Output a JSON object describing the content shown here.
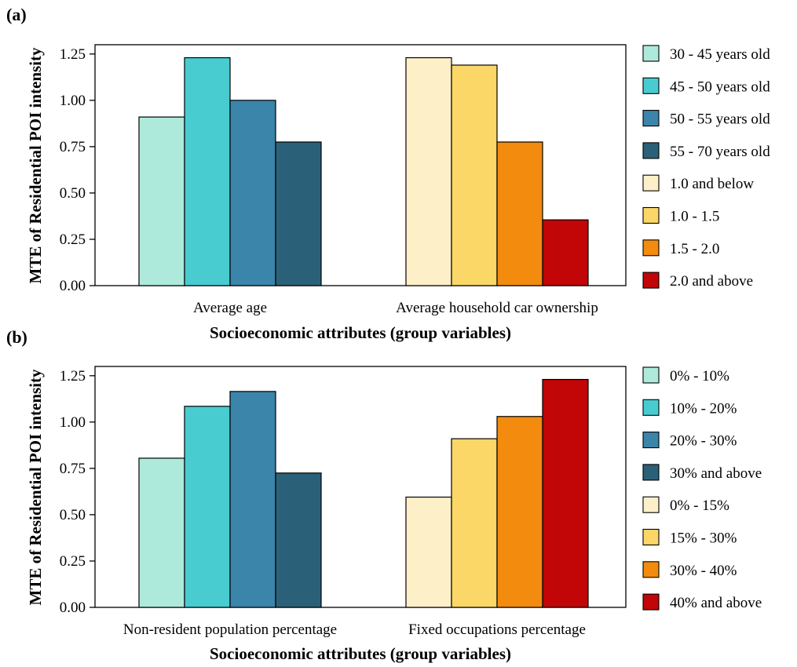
{
  "chart_data": [
    {
      "panel_label": "(a)",
      "type": "bar",
      "xlabel": "Socioeconomic attributes (group variables)",
      "ylabel": "MTE of Residential POI intensity",
      "ylim": [
        0,
        1.3
      ],
      "yticks": [
        "0.00",
        "0.25",
        "0.50",
        "0.75",
        "1.00",
        "1.25"
      ],
      "grid": false,
      "legend_position": "right",
      "groups": [
        {
          "label": "Average age",
          "bars": [
            {
              "name": "30 - 45 years old",
              "value": 0.91,
              "color": "#aeeadb"
            },
            {
              "name": "45 - 50 years old",
              "value": 1.23,
              "color": "#48ccd0"
            },
            {
              "name": "50 - 55 years old",
              "value": 1.0,
              "color": "#3b84aa"
            },
            {
              "name": "55 - 70 years old",
              "value": 0.775,
              "color": "#2b6079"
            }
          ]
        },
        {
          "label": "Average household car ownership",
          "bars": [
            {
              "name": "1.0 and below",
              "value": 1.23,
              "color": "#fdf0c8"
            },
            {
              "name": "1.0 - 1.5",
              "value": 1.19,
              "color": "#fbd767"
            },
            {
              "name": "1.5 - 2.0",
              "value": 0.775,
              "color": "#f28b0e"
            },
            {
              "name": "2.0 and above",
              "value": 0.355,
              "color": "#c20506"
            }
          ]
        }
      ]
    },
    {
      "panel_label": "(b)",
      "type": "bar",
      "xlabel": "Socioeconomic attributes (group variables)",
      "ylabel": "MTE of Residential POI intensity",
      "ylim": [
        0,
        1.3
      ],
      "yticks": [
        "0.00",
        "0.25",
        "0.50",
        "0.75",
        "1.00",
        "1.25"
      ],
      "grid": false,
      "legend_position": "right",
      "groups": [
        {
          "label": "Non-resident population percentage",
          "bars": [
            {
              "name": "0% - 10%",
              "value": 0.805,
              "color": "#aeeadb"
            },
            {
              "name": "10% - 20%",
              "value": 1.085,
              "color": "#48ccd0"
            },
            {
              "name": "20% - 30%",
              "value": 1.165,
              "color": "#3b84aa"
            },
            {
              "name": "30% and above",
              "value": 0.725,
              "color": "#2b6079"
            }
          ]
        },
        {
          "label": "Fixed occupations percentage",
          "bars": [
            {
              "name": "0%  - 15%",
              "value": 0.595,
              "color": "#fdf0c8"
            },
            {
              "name": "15% - 30%",
              "value": 0.91,
              "color": "#fbd767"
            },
            {
              "name": "30% - 40%",
              "value": 1.03,
              "color": "#f28b0e"
            },
            {
              "name": "40% and above",
              "value": 1.23,
              "color": "#c20506"
            }
          ]
        }
      ]
    }
  ]
}
